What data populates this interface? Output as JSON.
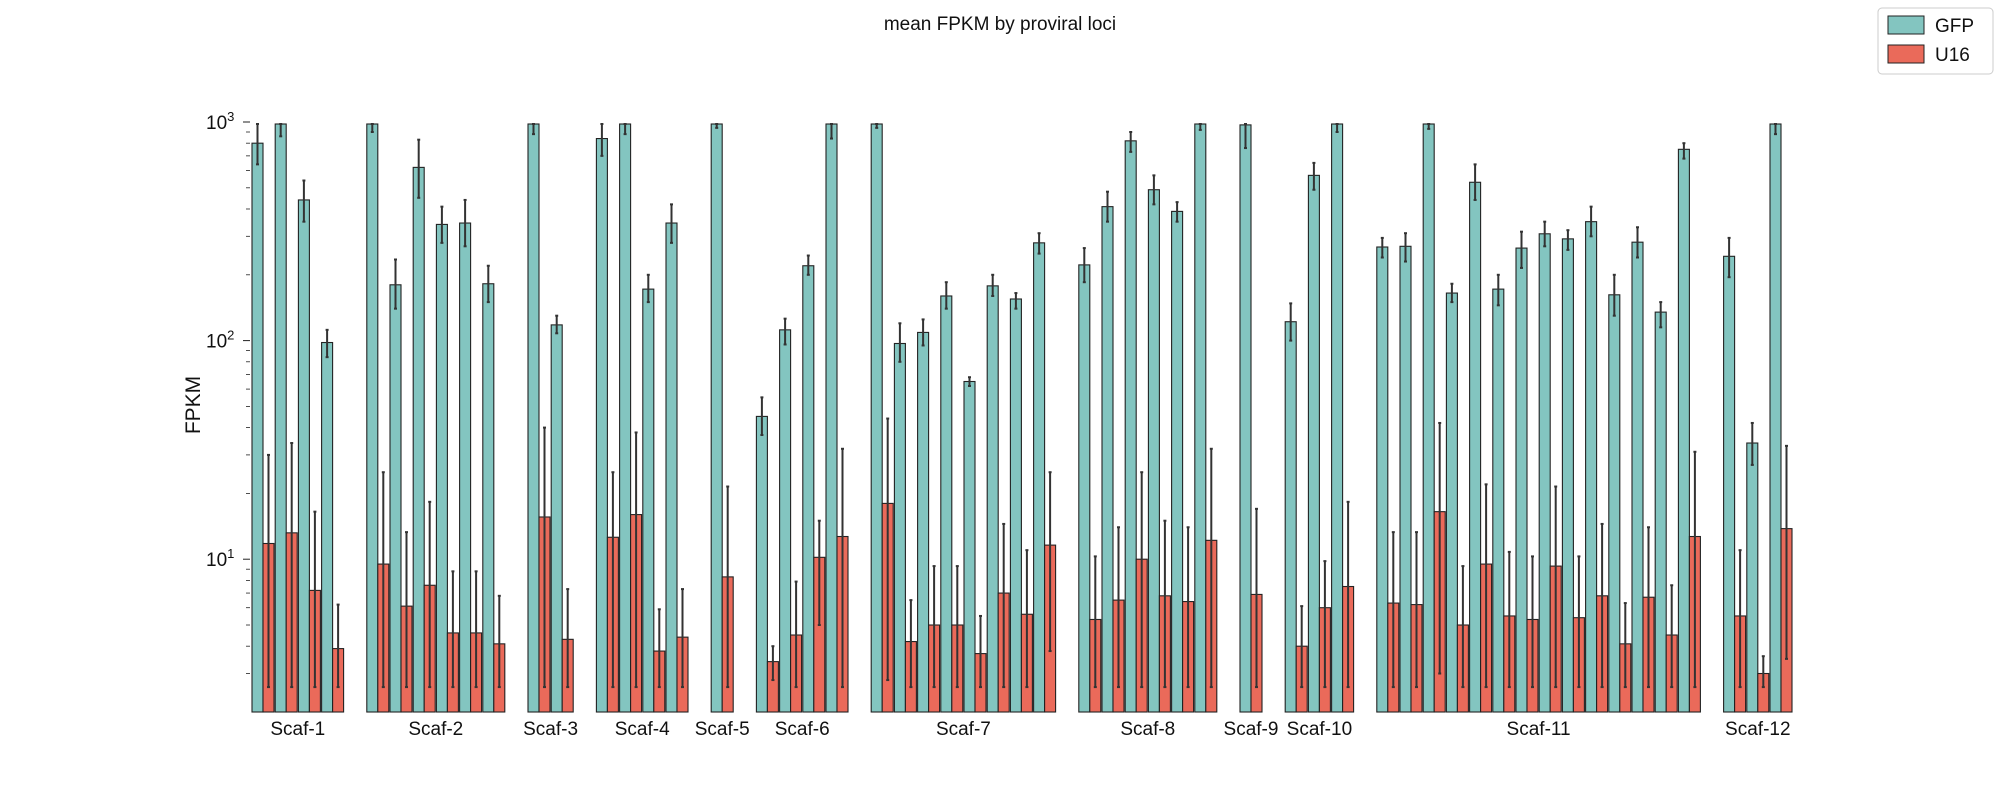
{
  "chart_data": {
    "type": "bar",
    "title": "mean FPKM by proviral loci",
    "xlabel": "",
    "ylabel": "FPKM",
    "yscale": "log",
    "ylim": [
      2,
      1400
    ],
    "yticks": [
      {
        "value": 10,
        "base": "10",
        "exp": "1"
      },
      {
        "value": 100,
        "base": "10",
        "exp": "2"
      },
      {
        "value": 1000,
        "base": "10",
        "exp": "3"
      }
    ],
    "legend_position": "top-right",
    "grid": false,
    "series": [
      {
        "name": "GFP",
        "color": "#83c5c0"
      },
      {
        "name": "U16",
        "color": "#ea6a5a"
      }
    ],
    "groups": [
      {
        "label": "Scaf-1",
        "gfp": [
          800,
          1060,
          440,
          98
        ],
        "gfp_err": [
          [
            640,
            980
          ],
          [
            860,
            1400
          ],
          [
            350,
            540
          ],
          [
            84,
            112
          ]
        ],
        "u16": [
          11.8,
          13.2,
          7.2,
          3.9
        ],
        "u16_err": [
          [
            2.6,
            30
          ],
          [
            2.6,
            34
          ],
          [
            2.6,
            16.5
          ],
          [
            2.6,
            6.2
          ]
        ]
      },
      {
        "label": "Scaf-2",
        "gfp": [
          1110,
          180,
          620,
          340,
          345,
          182
        ],
        "gfp_err": [
          [
            900,
            1400
          ],
          [
            140,
            235
          ],
          [
            450,
            830
          ],
          [
            280,
            410
          ],
          [
            270,
            440
          ],
          [
            150,
            220
          ]
        ],
        "u16": [
          9.5,
          6.1,
          7.6,
          4.6,
          4.6,
          4.1
        ],
        "u16_err": [
          [
            2.6,
            25
          ],
          [
            2.6,
            13.3
          ],
          [
            2.6,
            18.3
          ],
          [
            2.6,
            8.8
          ],
          [
            2.6,
            8.8
          ],
          [
            2.6,
            6.8
          ]
        ]
      },
      {
        "label": "Scaf-3",
        "gfp": [
          1080,
          118
        ],
        "gfp_err": [
          [
            880,
            1400
          ],
          [
            108,
            130
          ]
        ],
        "u16": [
          15.6,
          4.3
        ],
        "u16_err": [
          [
            2.6,
            40
          ],
          [
            2.6,
            7.3
          ]
        ]
      },
      {
        "label": "Scaf-4",
        "gfp": [
          840,
          1070,
          172,
          345
        ],
        "gfp_err": [
          [
            700,
            980
          ],
          [
            880,
            1400
          ],
          [
            150,
            200
          ],
          [
            280,
            420
          ]
        ],
        "u16": [
          12.6,
          16.0,
          3.8,
          4.4
        ],
        "u16_err": [
          [
            2.6,
            25
          ],
          [
            2.6,
            38
          ],
          [
            2.6,
            5.9
          ],
          [
            2.6,
            7.3
          ]
        ]
      },
      {
        "label": "Scaf-5",
        "gfp": [
          1160
        ],
        "gfp_err": [
          [
            940,
            1400
          ]
        ],
        "u16": [
          8.3
        ],
        "u16_err": [
          [
            2.6,
            21.5
          ]
        ]
      },
      {
        "label": "Scaf-6",
        "gfp": [
          45,
          112,
          220,
          1050
        ],
        "gfp_err": [
          [
            37,
            55
          ],
          [
            96,
            126
          ],
          [
            200,
            245
          ],
          [
            840,
            1400
          ]
        ],
        "u16": [
          3.4,
          4.5,
          10.2,
          12.7
        ],
        "u16_err": [
          [
            2.8,
            4.0
          ],
          [
            2.6,
            7.9
          ],
          [
            5.0,
            15.0
          ],
          [
            2.6,
            32
          ]
        ]
      },
      {
        "label": "Scaf-7",
        "gfp": [
          1140,
          97,
          109,
          160,
          65,
          178,
          155,
          280
        ],
        "gfp_err": [
          [
            940,
            1400
          ],
          [
            80,
            120
          ],
          [
            95,
            125
          ],
          [
            140,
            185
          ],
          [
            62,
            68
          ],
          [
            160,
            200
          ],
          [
            140,
            165
          ],
          [
            250,
            310
          ]
        ],
        "u16": [
          18.0,
          4.2,
          5.0,
          5.0,
          3.7,
          7.0,
          5.6,
          11.6
        ],
        "u16_err": [
          [
            2.8,
            44
          ],
          [
            2.6,
            6.5
          ],
          [
            2.6,
            9.3
          ],
          [
            2.6,
            9.3
          ],
          [
            2.6,
            5.5
          ],
          [
            2.6,
            14.5
          ],
          [
            2.6,
            11.0
          ],
          [
            3.8,
            25
          ]
        ]
      },
      {
        "label": "Scaf-8",
        "gfp": [
          222,
          410,
          820,
          490,
          390,
          1130
        ],
        "gfp_err": [
          [
            185,
            265
          ],
          [
            350,
            480
          ],
          [
            730,
            900
          ],
          [
            420,
            570
          ],
          [
            350,
            430
          ],
          [
            920,
            1400
          ]
        ],
        "u16": [
          5.3,
          6.5,
          10.0,
          6.8,
          6.4,
          12.2
        ],
        "u16_err": [
          [
            2.6,
            10.3
          ],
          [
            2.6,
            14.0
          ],
          [
            2.6,
            25
          ],
          [
            2.6,
            15.0
          ],
          [
            2.6,
            14.0
          ],
          [
            2.6,
            32
          ]
        ]
      },
      {
        "label": "Scaf-9",
        "gfp": [
          970
        ],
        "gfp_err": [
          [
            760,
            1400
          ]
        ],
        "u16": [
          6.9
        ],
        "u16_err": [
          [
            2.6,
            17.0
          ]
        ]
      },
      {
        "label": "Scaf-10",
        "gfp": [
          122,
          570,
          1100
        ],
        "gfp_err": [
          [
            100,
            148
          ],
          [
            490,
            650
          ],
          [
            900,
            1400
          ]
        ],
        "u16": [
          4.0,
          6.0,
          7.5
        ],
        "u16_err": [
          [
            2.6,
            6.1
          ],
          [
            2.6,
            9.8
          ],
          [
            2.6,
            18.3
          ]
        ]
      },
      {
        "label": "Scaf-11",
        "gfp": [
          268,
          270,
          1130,
          165,
          530,
          172,
          265,
          308,
          292,
          350,
          162,
          282,
          135,
          750
        ],
        "gfp_err": [
          [
            240,
            295
          ],
          [
            230,
            310
          ],
          [
            930,
            1400
          ],
          [
            150,
            182
          ],
          [
            440,
            640
          ],
          [
            145,
            200
          ],
          [
            215,
            315
          ],
          [
            270,
            350
          ],
          [
            260,
            320
          ],
          [
            300,
            410
          ],
          [
            130,
            200
          ],
          [
            240,
            330
          ],
          [
            115,
            150
          ],
          [
            680,
            800
          ]
        ],
        "u16": [
          6.3,
          6.2,
          16.5,
          5.0,
          9.5,
          5.5,
          5.3,
          9.3,
          5.4,
          6.8,
          4.1,
          6.7,
          4.5,
          12.7
        ],
        "u16_err": [
          [
            2.6,
            13.3
          ],
          [
            2.6,
            13.3
          ],
          [
            3.0,
            42
          ],
          [
            2.6,
            9.3
          ],
          [
            2.6,
            22
          ],
          [
            2.6,
            10.8
          ],
          [
            2.6,
            10.3
          ],
          [
            2.6,
            21.5
          ],
          [
            2.6,
            10.3
          ],
          [
            2.6,
            14.5
          ],
          [
            2.6,
            6.3
          ],
          [
            2.6,
            14.0
          ],
          [
            2.6,
            7.6
          ],
          [
            2.6,
            31
          ]
        ]
      },
      {
        "label": "Scaf-12",
        "gfp": [
          243,
          34,
          1100
        ],
        "gfp_err": [
          [
            195,
            295
          ],
          [
            27,
            42
          ],
          [
            880,
            1400
          ]
        ],
        "u16": [
          5.5,
          3.0,
          13.8
        ],
        "u16_err": [
          [
            2.6,
            11.0
          ],
          [
            2.6,
            3.6
          ],
          [
            3.5,
            33
          ]
        ]
      }
    ]
  }
}
